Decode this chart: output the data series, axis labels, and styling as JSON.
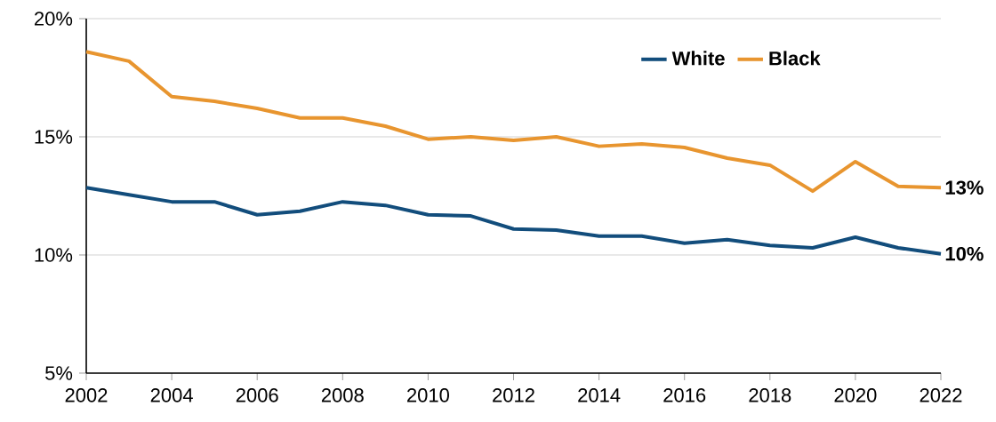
{
  "chart_data": {
    "type": "line",
    "x": [
      2002,
      2003,
      2004,
      2005,
      2006,
      2007,
      2008,
      2009,
      2010,
      2011,
      2012,
      2013,
      2014,
      2015,
      2016,
      2017,
      2018,
      2019,
      2020,
      2021,
      2022
    ],
    "series": [
      {
        "name": "White",
        "color": "#124d7c",
        "values": [
          12.85,
          12.55,
          12.25,
          12.25,
          11.7,
          11.85,
          12.25,
          12.1,
          11.7,
          11.65,
          11.1,
          11.05,
          10.8,
          10.8,
          10.5,
          10.65,
          10.4,
          10.3,
          10.75,
          10.3,
          10.05
        ]
      },
      {
        "name": "Black",
        "color": "#e8952f",
        "values": [
          18.6,
          18.2,
          16.7,
          16.5,
          16.2,
          15.8,
          15.8,
          15.45,
          14.9,
          15.0,
          14.85,
          15.0,
          14.6,
          14.7,
          14.55,
          14.1,
          13.8,
          12.7,
          13.95,
          12.9,
          12.85
        ]
      }
    ],
    "xlim": [
      2002,
      2022
    ],
    "xticks": [
      2002,
      2004,
      2006,
      2008,
      2010,
      2012,
      2014,
      2016,
      2018,
      2020,
      2022
    ],
    "ylim": [
      5,
      20
    ],
    "yticks": [
      {
        "value": 5,
        "label": "5%"
      },
      {
        "value": 10,
        "label": "10%"
      },
      {
        "value": 15,
        "label": "15%"
      },
      {
        "value": 20,
        "label": "20%"
      }
    ],
    "grid": "y",
    "legend": "top right",
    "marker": "none",
    "line_style": "solid",
    "annotations": [
      {
        "text": "13%",
        "x": 2022,
        "y": 12.85
      },
      {
        "text": "10%",
        "x": 2022,
        "y": 10.05
      }
    ]
  }
}
